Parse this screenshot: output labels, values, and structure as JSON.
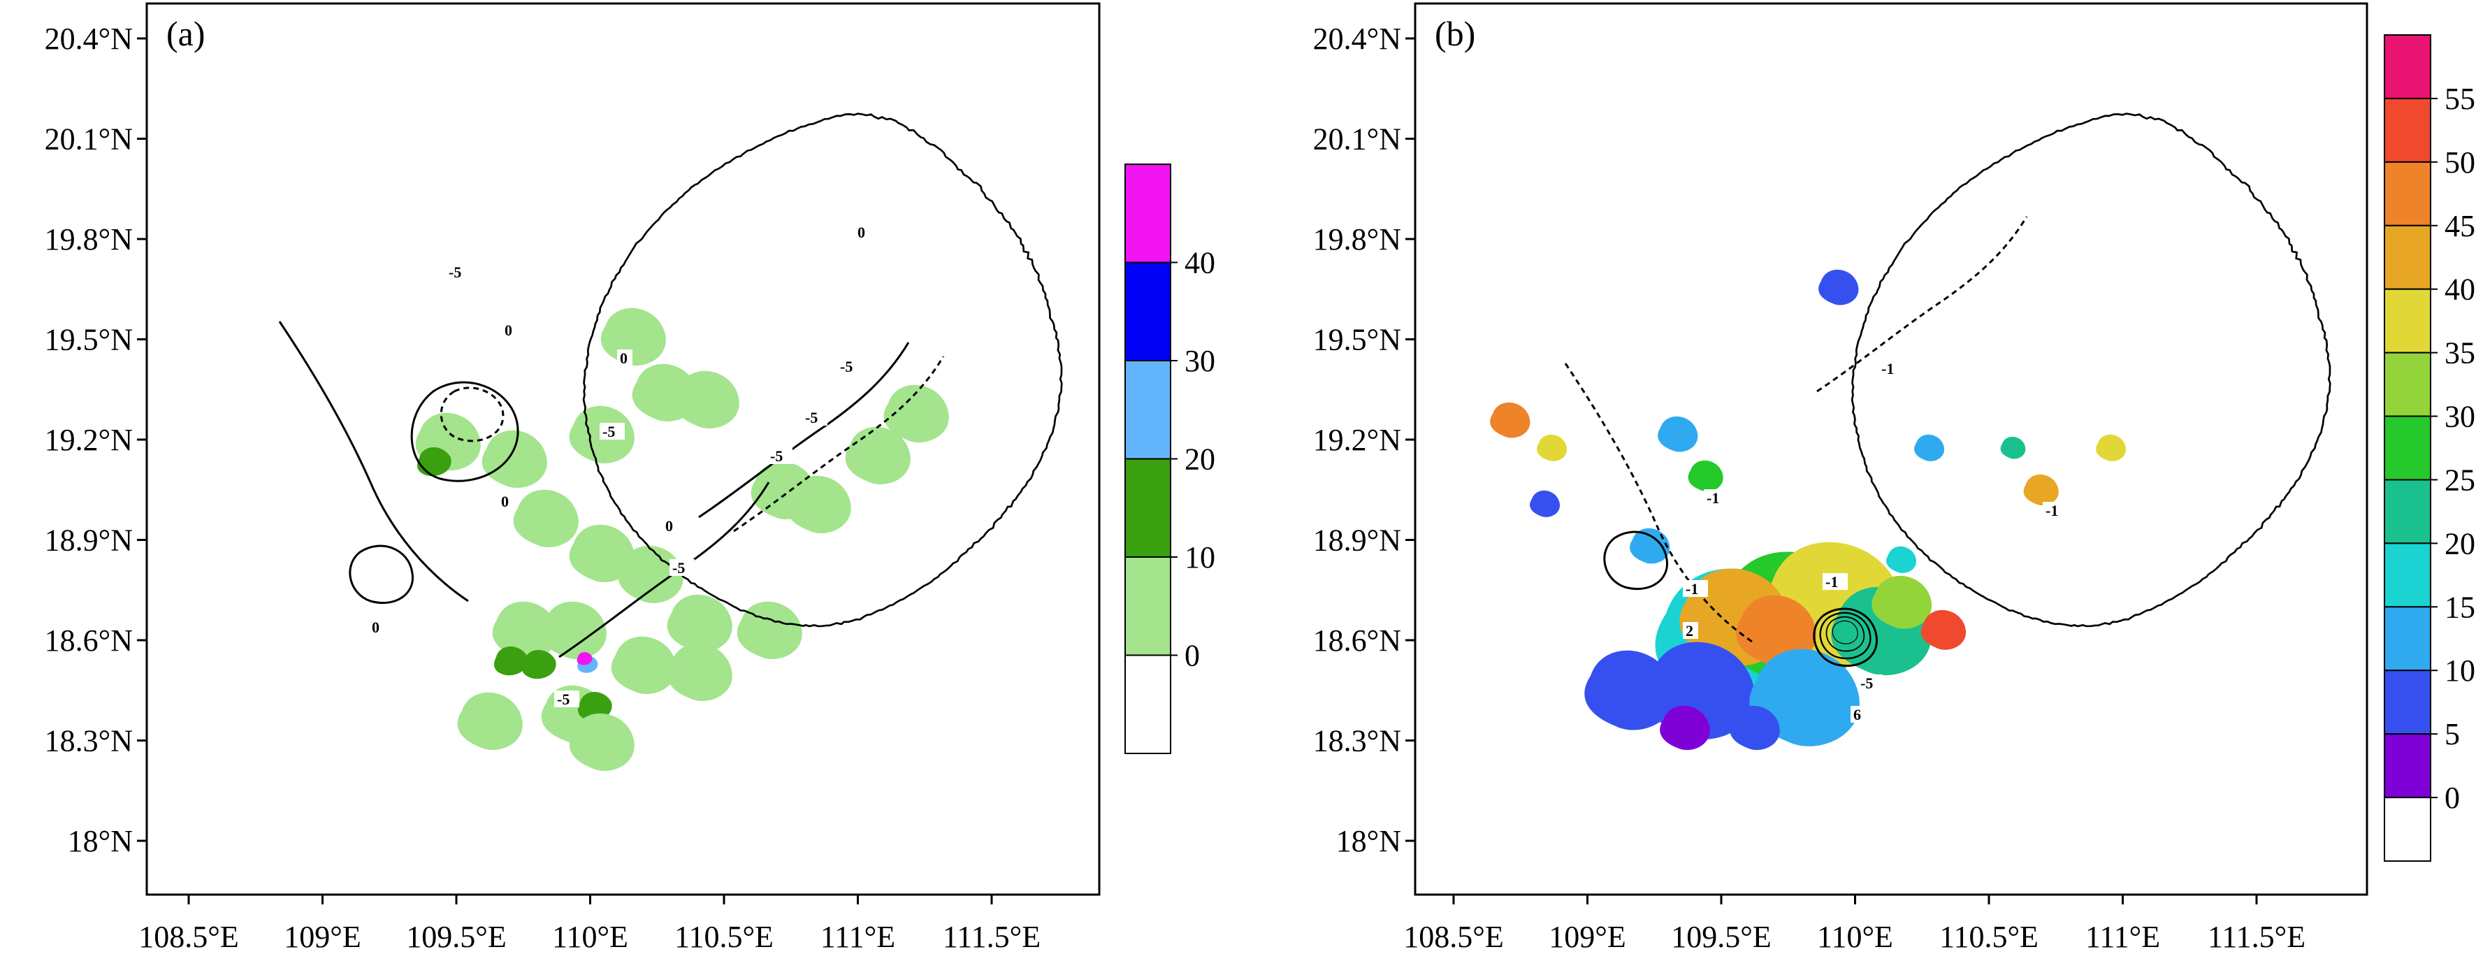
{
  "colors": {
    "coast": "#000000",
    "contour": "#000000",
    "panel_a_scale": [
      "#ffffff",
      "#a3e48d",
      "#3aa010",
      "#63b5fb",
      "#0000f5",
      "#f214f2"
    ],
    "panel_b_scale": [
      "#ffffff",
      "#8000d8",
      "#3650ef",
      "#2faaf0",
      "#1bd3d3",
      "#1ac18f",
      "#25c92b",
      "#92d43a",
      "#e1d838",
      "#e7a724",
      "#ef832a",
      "#f04a2e",
      "#ea1473"
    ]
  },
  "panels": [
    {
      "label": "(a)",
      "x_ticks": [
        "108.5°E",
        "109°E",
        "109.5°E",
        "110°E",
        "110.5°E",
        "111°E",
        "111.5°E"
      ],
      "y_ticks": [
        "20.4°N",
        "20.1°N",
        "19.8°N",
        "19.5°N",
        "19.2°N",
        "18.9°N",
        "18.6°N",
        "18.3°N",
        "18°N"
      ],
      "colorbar_labels": [
        "40",
        "30",
        "20",
        "10",
        "0"
      ],
      "contour_labels": [
        "0",
        "0",
        "0",
        "0",
        "0",
        "0",
        "-5",
        "-5",
        "-5",
        "-5",
        "-5",
        "-5",
        "-5"
      ]
    },
    {
      "label": "(b)",
      "x_ticks": [
        "108.5°E",
        "109°E",
        "109.5°E",
        "110°E",
        "110.5°E",
        "111°E",
        "111.5°E"
      ],
      "y_ticks": [
        "20.4°N",
        "20.1°N",
        "19.8°N",
        "19.5°N",
        "19.2°N",
        "18.9°N",
        "18.6°N",
        "18.3°N",
        "18°N"
      ],
      "colorbar_labels": [
        "55",
        "50",
        "45",
        "40",
        "35",
        "30",
        "25",
        "20",
        "15",
        "10",
        "5",
        "0"
      ],
      "contour_labels": [
        "-1",
        "-1",
        "-1",
        "-1",
        "-1",
        "2",
        "6",
        "-5"
      ]
    }
  ]
}
